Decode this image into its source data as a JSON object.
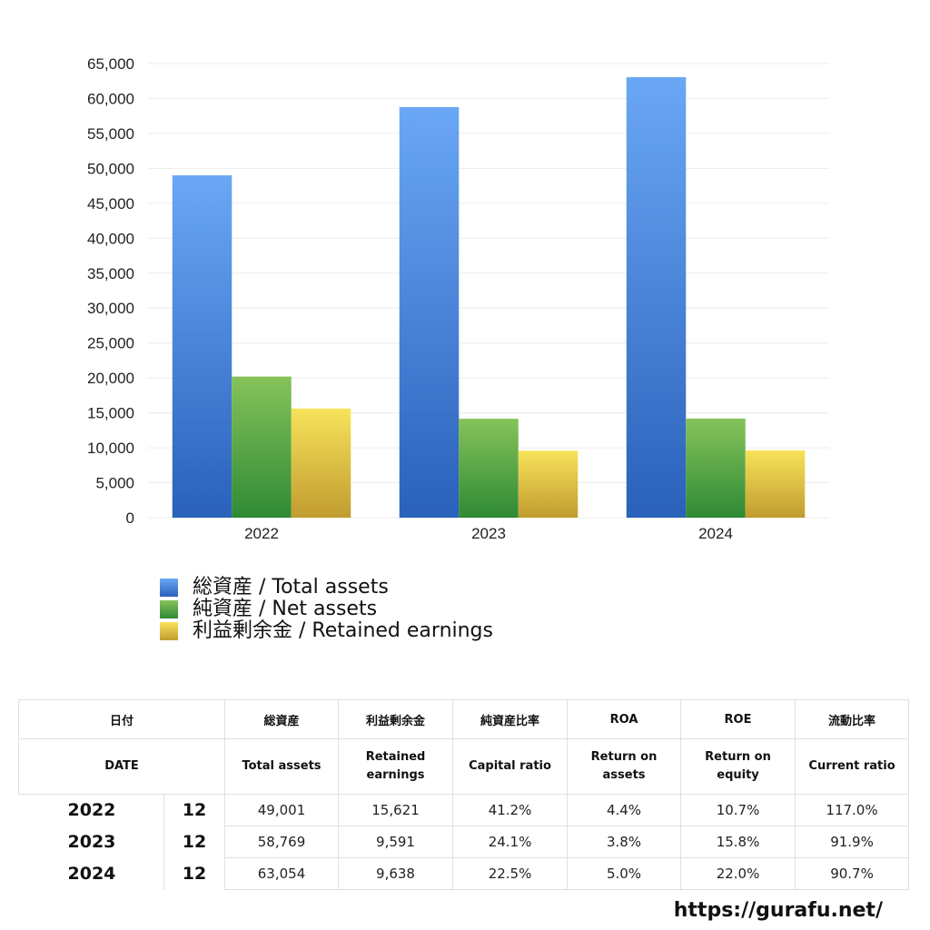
{
  "chart_data": {
    "type": "bar",
    "categories": [
      "2022",
      "2023",
      "2024"
    ],
    "series": [
      {
        "name": "総資産 / Total assets",
        "values": [
          49001,
          58769,
          63054
        ],
        "color_top": "#6aa7f5",
        "color_bottom": "#2a61bb"
      },
      {
        "name": "純資産 / Net assets",
        "values": [
          20200,
          14163,
          14186
        ],
        "color_top": "#86c35a",
        "color_bottom": "#2f8a35"
      },
      {
        "name": "利益剰余金 / Retained earnings",
        "values": [
          15621,
          9591,
          9638
        ],
        "color_top": "#f7e35a",
        "color_bottom": "#c19c30"
      }
    ],
    "ylim": [
      0,
      65000
    ],
    "yticks": [
      0,
      5000,
      10000,
      15000,
      20000,
      25000,
      30000,
      35000,
      40000,
      45000,
      50000,
      55000,
      60000,
      65000
    ],
    "ytick_labels": [
      "0",
      "5,000",
      "10,000",
      "15,000",
      "20,000",
      "25,000",
      "30,000",
      "35,000",
      "40,000",
      "45,000",
      "50,000",
      "55,000",
      "60,000",
      "65,000"
    ],
    "grid": true,
    "legend_position": "bottom-left"
  },
  "table": {
    "header_jp": {
      "date": "日付",
      "total_assets": "総資産",
      "retained_earnings": "利益剰余金",
      "capital_ratio": "純資産比率",
      "roa": "ROA",
      "roe": "ROE",
      "current_ratio": "流動比率"
    },
    "header_en": {
      "date": "DATE",
      "total_assets": "Total assets",
      "retained_earnings_1": "Retained",
      "retained_earnings_2": "earnings",
      "capital_ratio": "Capital ratio",
      "roa_1": "Return on",
      "roa_2": "assets",
      "roe_1": "Return on",
      "roe_2": "equity",
      "current_ratio": "Current ratio"
    },
    "rows": [
      {
        "year": "2022",
        "month": "12",
        "total_assets": "49,001",
        "retained_earnings": "15,621",
        "capital_ratio": "41.2%",
        "roa": "4.4%",
        "roe": "10.7%",
        "current_ratio": "117.0%"
      },
      {
        "year": "2023",
        "month": "12",
        "total_assets": "58,769",
        "retained_earnings": "9,591",
        "capital_ratio": "24.1%",
        "roa": "3.8%",
        "roe": "15.8%",
        "current_ratio": "91.9%"
      },
      {
        "year": "2024",
        "month": "12",
        "total_assets": "63,054",
        "retained_earnings": "9,638",
        "capital_ratio": "22.5%",
        "roa": "5.0%",
        "roe": "22.0%",
        "current_ratio": "90.7%"
      }
    ]
  },
  "footer": {
    "url": "https://gurafu.net/"
  }
}
